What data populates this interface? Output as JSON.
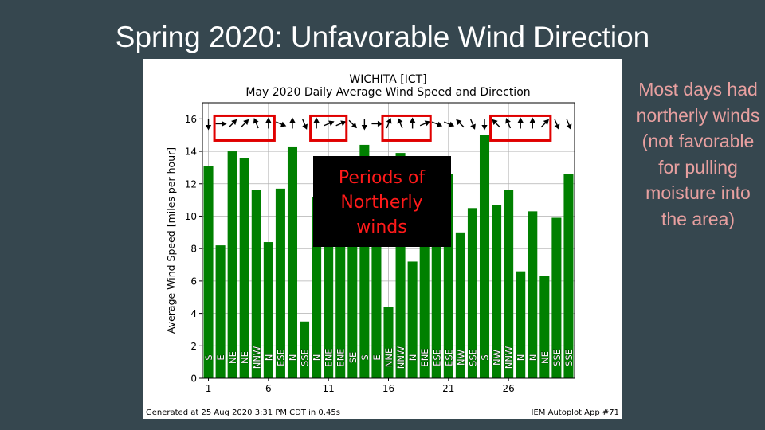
{
  "slide": {
    "title": "Spring 2020: Unfavorable Wind Direction",
    "side_note": "Most days had northerly winds (not favorable for pulling moisture into the area)",
    "overlay_text": "Periods of Northerly winds",
    "footer_left": "Generated at 25 Aug 2020 3:31 PM CDT in 0.45s",
    "footer_right": "IEM Autoplot App #71"
  },
  "colors": {
    "background": "#36474f",
    "bar": "#008000",
    "highlight_box": "#e00000",
    "overlay_bg": "#000000",
    "overlay_text": "#ff1a1a",
    "side_note": "#e8a0a0"
  },
  "chart_data": {
    "type": "bar",
    "title": "WICHITA [ICT]",
    "subtitle": "May 2020 Daily Average Wind Speed and Direction",
    "xlabel": "",
    "ylabel": "Average Wind Speed [miles per hour]",
    "xlim": [
      0.5,
      31.5
    ],
    "ylim": [
      0,
      17
    ],
    "xticks": [
      1,
      6,
      11,
      16,
      21,
      26
    ],
    "yticks": [
      0,
      2,
      4,
      6,
      8,
      10,
      12,
      14,
      16
    ],
    "grid": true,
    "days": [
      1,
      2,
      3,
      4,
      5,
      6,
      7,
      8,
      9,
      10,
      11,
      12,
      13,
      14,
      15,
      16,
      17,
      18,
      19,
      20,
      21,
      22,
      23,
      24,
      25,
      26,
      27,
      28,
      29,
      30,
      31
    ],
    "values": [
      13.1,
      8.2,
      14.0,
      13.6,
      11.6,
      8.4,
      11.7,
      14.3,
      3.5,
      11.2,
      11.7,
      11.2,
      10.6,
      14.4,
      11.7,
      4.4,
      13.9,
      7.2,
      11.6,
      11.4,
      12.6,
      9.0,
      10.5,
      15.0,
      10.7,
      11.6,
      6.6,
      10.3,
      6.3,
      9.9,
      12.6
    ],
    "directions": [
      "S",
      "E",
      "NE",
      "NE",
      "NNW",
      "N",
      "ESE",
      "N",
      "SSE",
      "N",
      "ENE",
      "ENE",
      "SE",
      "S",
      "E",
      "NNE",
      "NNW",
      "N",
      "ENE",
      "ESE",
      "ESE",
      "NW",
      "SSE",
      "S",
      "NW",
      "NNW",
      "N",
      "N",
      "NE",
      "SSE",
      "SSE"
    ],
    "arrow_bearing_deg": [
      180,
      90,
      45,
      45,
      337.5,
      0,
      112.5,
      0,
      157.5,
      0,
      67.5,
      67.5,
      135,
      180,
      90,
      22.5,
      337.5,
      0,
      67.5,
      112.5,
      112.5,
      315,
      157.5,
      180,
      315,
      337.5,
      0,
      0,
      45,
      157.5,
      157.5
    ],
    "arrow_y": 15.7,
    "highlight_periods": [
      [
        2,
        6
      ],
      [
        10,
        12
      ],
      [
        16,
        19
      ],
      [
        25,
        29
      ]
    ]
  }
}
